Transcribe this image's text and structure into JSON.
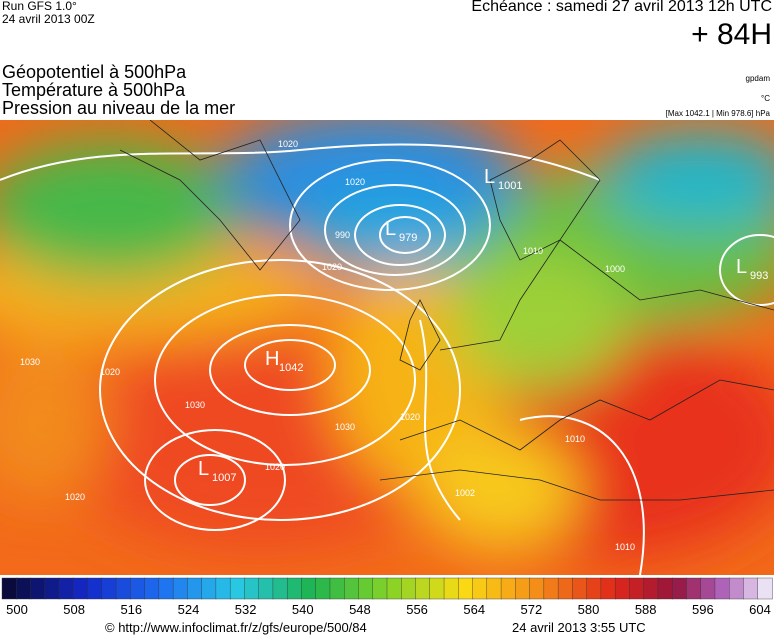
{
  "header": {
    "run": "Run GFS 1.0°",
    "date": "24 avril 2013 00Z",
    "echeance": "Echéance : samedi 27 avril 2013 12h UTC",
    "lead": "+ 84H"
  },
  "titles": [
    "Géopotentiel à 500hPa",
    "Température à 500hPa",
    "Pression au niveau de la mer"
  ],
  "units": [
    "gpdam",
    "°C",
    "[Max 1042.1 | Min 978.6] hPa"
  ],
  "centers": [
    {
      "type": "H",
      "value": "1042"
    },
    {
      "type": "L",
      "value": "979"
    },
    {
      "type": "L",
      "value": "1007"
    },
    {
      "type": "L",
      "value": "1001"
    },
    {
      "type": "L",
      "value": "993"
    }
  ],
  "isobar_labels": [
    "1020",
    "1020",
    "990",
    "1020",
    "1030",
    "1020",
    "1030",
    "1030",
    "1020",
    "1020",
    "1002",
    "1010",
    "1000",
    "1010",
    "1010",
    "1020"
  ],
  "colorbar": {
    "ticks": [
      500,
      508,
      516,
      524,
      532,
      540,
      548,
      556,
      564,
      572,
      580,
      588,
      596,
      604
    ]
  },
  "footer": {
    "url": "© http://www.infoclimat.fr/z/gfs/europe/500/84",
    "date": "24 avril 2013  3:55 UTC"
  }
}
